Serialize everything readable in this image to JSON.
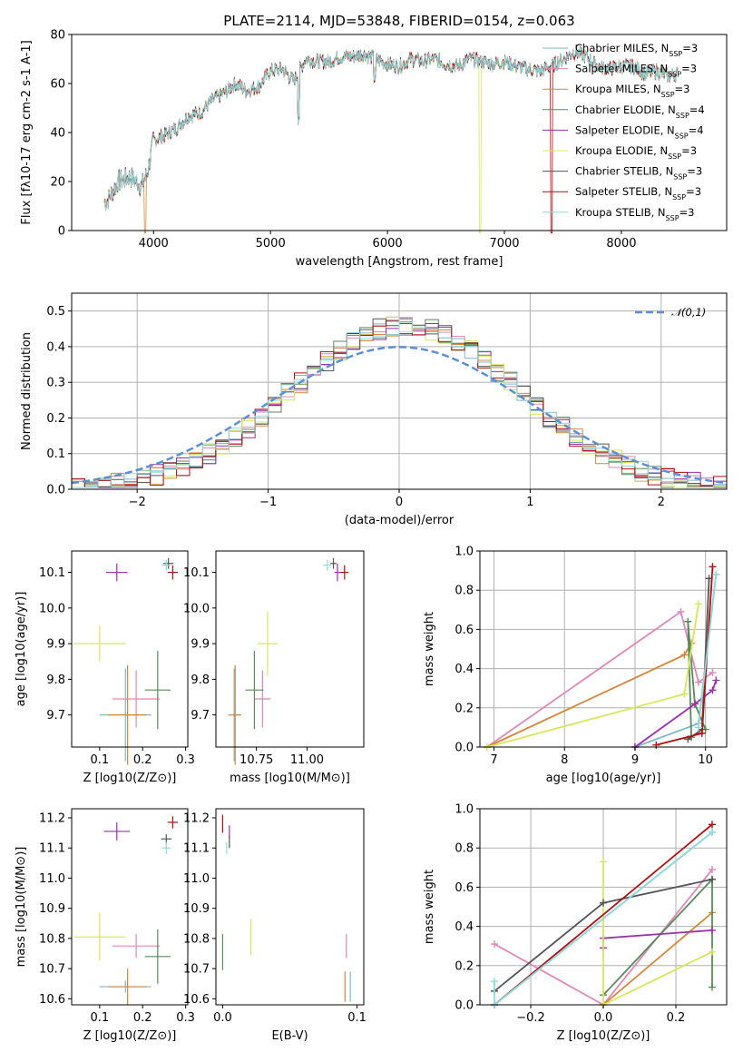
{
  "title": "PLATE=2114, MJD=53848, FIBERID=0154, z=0.063",
  "models": [
    {
      "name": "Chabrier MILES",
      "nssp": "3",
      "color": "#7fb8cc"
    },
    {
      "name": "Salpeter MILES",
      "nssp": "3",
      "color": "#e088b8"
    },
    {
      "name": "Kroupa MILES",
      "nssp": "3",
      "color": "#d4873a"
    },
    {
      "name": "Chabrier ELODIE",
      "nssp": "4",
      "color": "#5a8a5a"
    },
    {
      "name": "Salpeter ELODIE",
      "nssp": "4",
      "color": "#9b2fae"
    },
    {
      "name": "Kroupa ELODIE",
      "nssp": "3",
      "color": "#d6e85a"
    },
    {
      "name": "Chabrier STELIB",
      "nssp": "3",
      "color": "#555555"
    },
    {
      "name": "Salpeter STELIB",
      "nssp": "3",
      "color": "#b01010"
    },
    {
      "name": "Kroupa STELIB",
      "nssp": "3",
      "color": "#90dada"
    }
  ],
  "chart_data": [
    {
      "id": "spectrum",
      "type": "line",
      "xlabel": "wavelength [Angstrom, rest frame]",
      "ylabel": "Flux [f$_\\lambda$10$^{-17}$ erg cm$^{-2}$ s$^{-1}$ A$^{-1}$]",
      "xlim": [
        3300,
        8900
      ],
      "ylim": [
        0,
        80
      ],
      "xticks": [
        "4000",
        "5000",
        "6000",
        "7000",
        "8000"
      ],
      "yticks": [
        "0",
        "20",
        "40",
        "60",
        "80"
      ],
      "legend": "top-right",
      "x": [
        3600,
        3700,
        3800,
        3900,
        3950,
        4000,
        4100,
        4200,
        4300,
        4400,
        4500,
        4600,
        4700,
        4800,
        4900,
        5000,
        5100,
        5200,
        5300,
        5400,
        5500,
        5600,
        5700,
        5800,
        5900,
        6000,
        6100,
        6200,
        6300,
        6400,
        6500,
        6600,
        6700,
        6800,
        6900,
        7000,
        7100,
        7200,
        7300,
        7400,
        7500,
        7600,
        7700,
        7800,
        7900,
        8000,
        8100,
        8200,
        8300,
        8400,
        8500
      ],
      "y": [
        12,
        20,
        22,
        18,
        24,
        37,
        39,
        42,
        47,
        48,
        53,
        56,
        60,
        57,
        59,
        65,
        66,
        61,
        70,
        69,
        69,
        71,
        71,
        72,
        70,
        68,
        67,
        70,
        69,
        70,
        68,
        67,
        70,
        69,
        68,
        69,
        67,
        66,
        65,
        67,
        70,
        73,
        71,
        67,
        66,
        67,
        67,
        64,
        65,
        63,
        64
      ],
      "dropouts": [
        {
          "model": 2,
          "x": 3930
        },
        {
          "model": 5,
          "x": 6790
        },
        {
          "model": 7,
          "x": 7400
        }
      ]
    },
    {
      "id": "residuals",
      "type": "histogram",
      "xlabel": "(data-model)/error",
      "ylabel": "Normed distribution",
      "xlim": [
        -2.5,
        2.5
      ],
      "ylim": [
        0,
        0.55
      ],
      "xticks": [
        "−2",
        "−1",
        "0",
        "1",
        "2"
      ],
      "yticks": [
        "0.0",
        "0.1",
        "0.2",
        "0.3",
        "0.4",
        "0.5"
      ],
      "legend_label": "𝒩(0,1)",
      "legend": "top-right",
      "grid": true,
      "bin_width": 0.1,
      "bins_start": -2.5,
      "gaussian_label": "N(0,1)"
    },
    {
      "id": "age_vs_Z",
      "type": "errorbar",
      "xlabel": "Z [log$_{10}$(Z/Z$_\\odot$)]",
      "ylabel": "age  [log$_{10}$(age/yr)]",
      "xlim": [
        0.035,
        0.305
      ],
      "ylim": [
        9.61,
        10.16
      ],
      "xticks": [
        "0.1",
        "0.2",
        "0.3"
      ],
      "yticks": [
        "9.7",
        "9.8",
        "9.9",
        "10.0",
        "10.1"
      ],
      "points": [
        {
          "m": 0,
          "x": 0.16,
          "y": 9.7,
          "ex": 0.06,
          "ey": 0.13
        },
        {
          "m": 1,
          "x": 0.185,
          "y": 9.745,
          "ex": 0.055,
          "ey": 0.08
        },
        {
          "m": 2,
          "x": 0.165,
          "y": 9.7,
          "ex": 0.045,
          "ey": 0.14
        },
        {
          "m": 3,
          "x": 0.235,
          "y": 9.77,
          "ex": 0.03,
          "ey": 0.11
        },
        {
          "m": 4,
          "x": 0.14,
          "y": 10.1,
          "ex": 0.025,
          "ey": 0.025
        },
        {
          "m": 5,
          "x": 0.1,
          "y": 9.9,
          "ex": 0.06,
          "ey": 0.05
        },
        {
          "m": 6,
          "x": 0.26,
          "y": 10.125,
          "ex": 0.012,
          "ey": 0.015
        },
        {
          "m": 7,
          "x": 0.27,
          "y": 10.1,
          "ex": 0.012,
          "ey": 0.02
        },
        {
          "m": 8,
          "x": 0.255,
          "y": 10.12,
          "ex": 0.01,
          "ey": 0.015
        }
      ]
    },
    {
      "id": "age_vs_mass",
      "type": "errorbar",
      "xlabel": "mass [log$_{10}$(M/M$_\\odot$)]",
      "ylabel": "",
      "xlim": [
        10.55,
        11.28
      ],
      "ylim": [
        9.61,
        10.16
      ],
      "xticks": [
        "10.75",
        "11.00"
      ],
      "yticks": [
        "9.7",
        "9.8",
        "9.9",
        "10.0",
        "10.1"
      ],
      "points": [
        {
          "m": 0,
          "x": 10.64,
          "y": 9.7,
          "ex": 0.03,
          "ey": 0.13
        },
        {
          "m": 1,
          "x": 10.78,
          "y": 9.745,
          "ex": 0.04,
          "ey": 0.08
        },
        {
          "m": 2,
          "x": 10.645,
          "y": 9.7,
          "ex": 0.03,
          "ey": 0.14
        },
        {
          "m": 3,
          "x": 10.74,
          "y": 9.77,
          "ex": 0.045,
          "ey": 0.11
        },
        {
          "m": 4,
          "x": 11.15,
          "y": 10.1,
          "ex": 0.015,
          "ey": 0.025
        },
        {
          "m": 5,
          "x": 10.805,
          "y": 9.9,
          "ex": 0.05,
          "ey": 0.09
        },
        {
          "m": 6,
          "x": 11.13,
          "y": 10.125,
          "ex": 0.015,
          "ey": 0.015
        },
        {
          "m": 7,
          "x": 11.185,
          "y": 10.1,
          "ex": 0.02,
          "ey": 0.02
        },
        {
          "m": 8,
          "x": 11.1,
          "y": 10.12,
          "ex": 0.02,
          "ey": 0.015
        }
      ]
    },
    {
      "id": "weight_vs_age",
      "type": "line",
      "xlabel": "age  [log$_{10}$(age/yr)]",
      "ylabel": "mass weight",
      "xlim": [
        6.8,
        10.3
      ],
      "ylim": [
        0,
        1
      ],
      "xticks": [
        "7",
        "8",
        "9",
        "10"
      ],
      "yticks": [
        "0.0",
        "0.2",
        "0.4",
        "0.6",
        "0.8",
        "1.0"
      ],
      "grid": true,
      "series": [
        {
          "m": 0,
          "x": [
            9.0,
            9.9,
            10.15
          ],
          "y": [
            0.0,
            0.12,
            0.88
          ]
        },
        {
          "m": 1,
          "x": [
            6.9,
            9.65,
            9.9,
            10.1
          ],
          "y": [
            0.0,
            0.69,
            0.33,
            0.38
          ]
        },
        {
          "m": 2,
          "x": [
            6.9,
            9.7,
            9.8
          ],
          "y": [
            0.0,
            0.47,
            0.53
          ]
        },
        {
          "m": 3,
          "x": [
            9.8,
            9.75,
            9.85,
            10.0
          ],
          "y": [
            0.05,
            0.64,
            0.22,
            0.09
          ]
        },
        {
          "m": 4,
          "x": [
            9.0,
            9.85,
            10.1,
            10.15
          ],
          "y": [
            0.0,
            0.22,
            0.29,
            0.34
          ]
        },
        {
          "m": 5,
          "x": [
            6.9,
            9.7,
            9.9
          ],
          "y": [
            0.0,
            0.27,
            0.73
          ]
        },
        {
          "m": 6,
          "x": [
            9.75,
            9.95,
            10.05
          ],
          "y": [
            0.04,
            0.09,
            0.86
          ]
        },
        {
          "m": 7,
          "x": [
            9.3,
            9.95,
            10.1
          ],
          "y": [
            0.01,
            0.07,
            0.92
          ]
        },
        {
          "m": 8,
          "x": [
            9.9,
            10.15
          ],
          "y": [
            0.1,
            0.88
          ]
        }
      ]
    },
    {
      "id": "mass_vs_Z",
      "type": "errorbar",
      "xlabel": "Z [log$_{10}$(Z/Z$_\\odot$)]",
      "ylabel": "mass [log$_{10}$(M/M$_\\odot$)]",
      "xlim": [
        0.035,
        0.305
      ],
      "ylim": [
        10.58,
        11.23
      ],
      "xticks": [
        "0.1",
        "0.2",
        "0.3"
      ],
      "yticks": [
        "10.6",
        "10.7",
        "10.8",
        "10.9",
        "11.0",
        "11.1",
        "11.2"
      ],
      "points": [
        {
          "m": 0,
          "x": 0.16,
          "y": 10.64,
          "ex": 0.06,
          "ey": 0.02
        },
        {
          "m": 1,
          "x": 0.185,
          "y": 10.775,
          "ex": 0.055,
          "ey": 0.04
        },
        {
          "m": 2,
          "x": 0.165,
          "y": 10.64,
          "ex": 0.045,
          "ey": 0.06
        },
        {
          "m": 3,
          "x": 0.235,
          "y": 10.74,
          "ex": 0.03,
          "ey": 0.09
        },
        {
          "m": 4,
          "x": 0.14,
          "y": 11.155,
          "ex": 0.03,
          "ey": 0.03
        },
        {
          "m": 5,
          "x": 0.1,
          "y": 10.805,
          "ex": 0.06,
          "ey": 0.08
        },
        {
          "m": 6,
          "x": 0.255,
          "y": 11.13,
          "ex": 0.012,
          "ey": 0.015
        },
        {
          "m": 7,
          "x": 0.27,
          "y": 11.185,
          "ex": 0.012,
          "ey": 0.02
        },
        {
          "m": 8,
          "x": 0.255,
          "y": 11.1,
          "ex": 0.01,
          "ey": 0.02
        }
      ]
    },
    {
      "id": "mass_vs_EBV",
      "type": "errorbar",
      "xlabel": "E(B-V)",
      "ylabel": "",
      "xlim": [
        -0.005,
        0.105
      ],
      "ylim": [
        10.58,
        11.23
      ],
      "xticks": [
        "0.0",
        "0.1"
      ],
      "yticks": [
        "10.6",
        "10.7",
        "10.8",
        "10.9",
        "11.0",
        "11.1",
        "11.2"
      ],
      "points": [
        {
          "m": 0,
          "x": 0.095,
          "y": 10.64,
          "ex": 0.0,
          "ey": 0.05
        },
        {
          "m": 1,
          "x": 0.092,
          "y": 10.775,
          "ex": 0.0,
          "ey": 0.04
        },
        {
          "m": 2,
          "x": 0.091,
          "y": 10.64,
          "ex": 0.0,
          "ey": 0.05
        },
        {
          "m": 3,
          "x": 0.0,
          "y": 10.755,
          "ex": 0.0,
          "ey": 0.06
        },
        {
          "m": 4,
          "x": 0.005,
          "y": 11.155,
          "ex": 0.0,
          "ey": 0.02
        },
        {
          "m": 5,
          "x": 0.021,
          "y": 10.805,
          "ex": 0.0,
          "ey": 0.06
        },
        {
          "m": 6,
          "x": 0.005,
          "y": 11.12,
          "ex": 0.0,
          "ey": 0.02
        },
        {
          "m": 7,
          "x": 0.0,
          "y": 11.18,
          "ex": 0.0,
          "ey": 0.03
        },
        {
          "m": 8,
          "x": 0.003,
          "y": 11.1,
          "ex": 0.0,
          "ey": 0.02
        }
      ]
    },
    {
      "id": "weight_vs_Z",
      "type": "line",
      "xlabel": "Z [log$_{10}$(Z/Z$_\\odot$)]",
      "ylabel": "mass weight",
      "xlim": [
        -0.34,
        0.34
      ],
      "ylim": [
        0,
        1
      ],
      "xticks": [
        "−0.2",
        "0.0",
        "0.2"
      ],
      "yticks": [
        "0.0",
        "0.2",
        "0.4",
        "0.6",
        "0.8",
        "1.0"
      ],
      "grid": true,
      "series": [
        {
          "m": 0,
          "x": [
            -0.3,
            0.3
          ],
          "y": [
            0.0,
            0.88
          ]
        },
        {
          "m": 1,
          "x": [
            -0.3,
            0.0,
            0.3
          ],
          "y": [
            0.31,
            0.0,
            0.69
          ]
        },
        {
          "m": 2,
          "x": [
            0.0,
            0.3
          ],
          "y": [
            0.0,
            0.47
          ]
        },
        {
          "m": 3,
          "x": [
            0.0,
            0.3,
            0.3
          ],
          "y": [
            0.05,
            0.64,
            0.09
          ]
        },
        {
          "m": 4,
          "x": [
            0.0,
            0.0,
            0.3
          ],
          "y": [
            0.29,
            0.34,
            0.38
          ]
        },
        {
          "m": 5,
          "x": [
            0.0,
            0.0,
            0.3
          ],
          "y": [
            0.73,
            0.0,
            0.27
          ]
        },
        {
          "m": 6,
          "x": [
            -0.3,
            0.0,
            0.3
          ],
          "y": [
            0.07,
            0.52,
            0.64
          ]
        },
        {
          "m": 7,
          "x": [
            -0.3,
            0.3
          ],
          "y": [
            0.0,
            0.92
          ]
        },
        {
          "m": 8,
          "x": [
            -0.3,
            -0.3,
            0.3
          ],
          "y": [
            0.12,
            0.0,
            0.88
          ]
        }
      ]
    }
  ]
}
